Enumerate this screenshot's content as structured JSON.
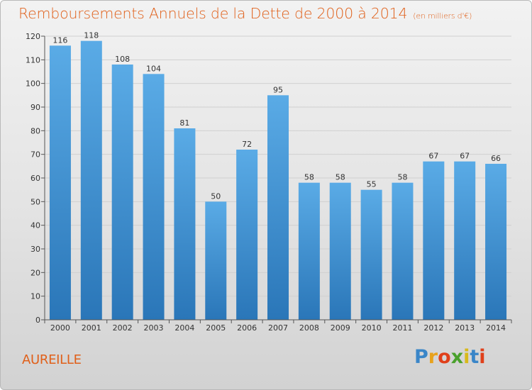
{
  "header": {
    "title": "Remboursements Annuels de la Dette de 2000 à 2014",
    "subtitle": "(en milliers d'€)"
  },
  "commune_name": "AUREILLE",
  "logo": {
    "text": "Proxiti",
    "letters": [
      {
        "char": "P",
        "color": "#3a86c8"
      },
      {
        "char": "r",
        "color": "#e8a21c"
      },
      {
        "char": "o",
        "color": "#e0401a"
      },
      {
        "char": "x",
        "color": "#4aa12c"
      },
      {
        "char": "i",
        "color": "#d8b91a"
      },
      {
        "char": "t",
        "color": "#3a86c8"
      },
      {
        "char": "i",
        "color": "#e0401a"
      }
    ]
  },
  "colors": {
    "accent": "#e0601a",
    "bar_top": "#5aabe6",
    "bar_bottom": "#2a76b8",
    "grid": "#d0d0d0"
  },
  "chart_data": {
    "type": "bar",
    "title": "Remboursements Annuels de la Dette de 2000 à 2014",
    "subtitle": "(en milliers d'€)",
    "categories": [
      "2000",
      "2001",
      "2002",
      "2003",
      "2004",
      "2005",
      "2006",
      "2007",
      "2008",
      "2009",
      "2010",
      "2011",
      "2012",
      "2013",
      "2014"
    ],
    "values": [
      116,
      118,
      108,
      104,
      81,
      50,
      72,
      95,
      58,
      58,
      55,
      58,
      67,
      67,
      66
    ],
    "ylim": [
      0,
      120
    ],
    "yticks": [
      0,
      10,
      20,
      30,
      40,
      50,
      60,
      70,
      80,
      90,
      100,
      110,
      120
    ],
    "grid": true,
    "data_labels": true
  }
}
